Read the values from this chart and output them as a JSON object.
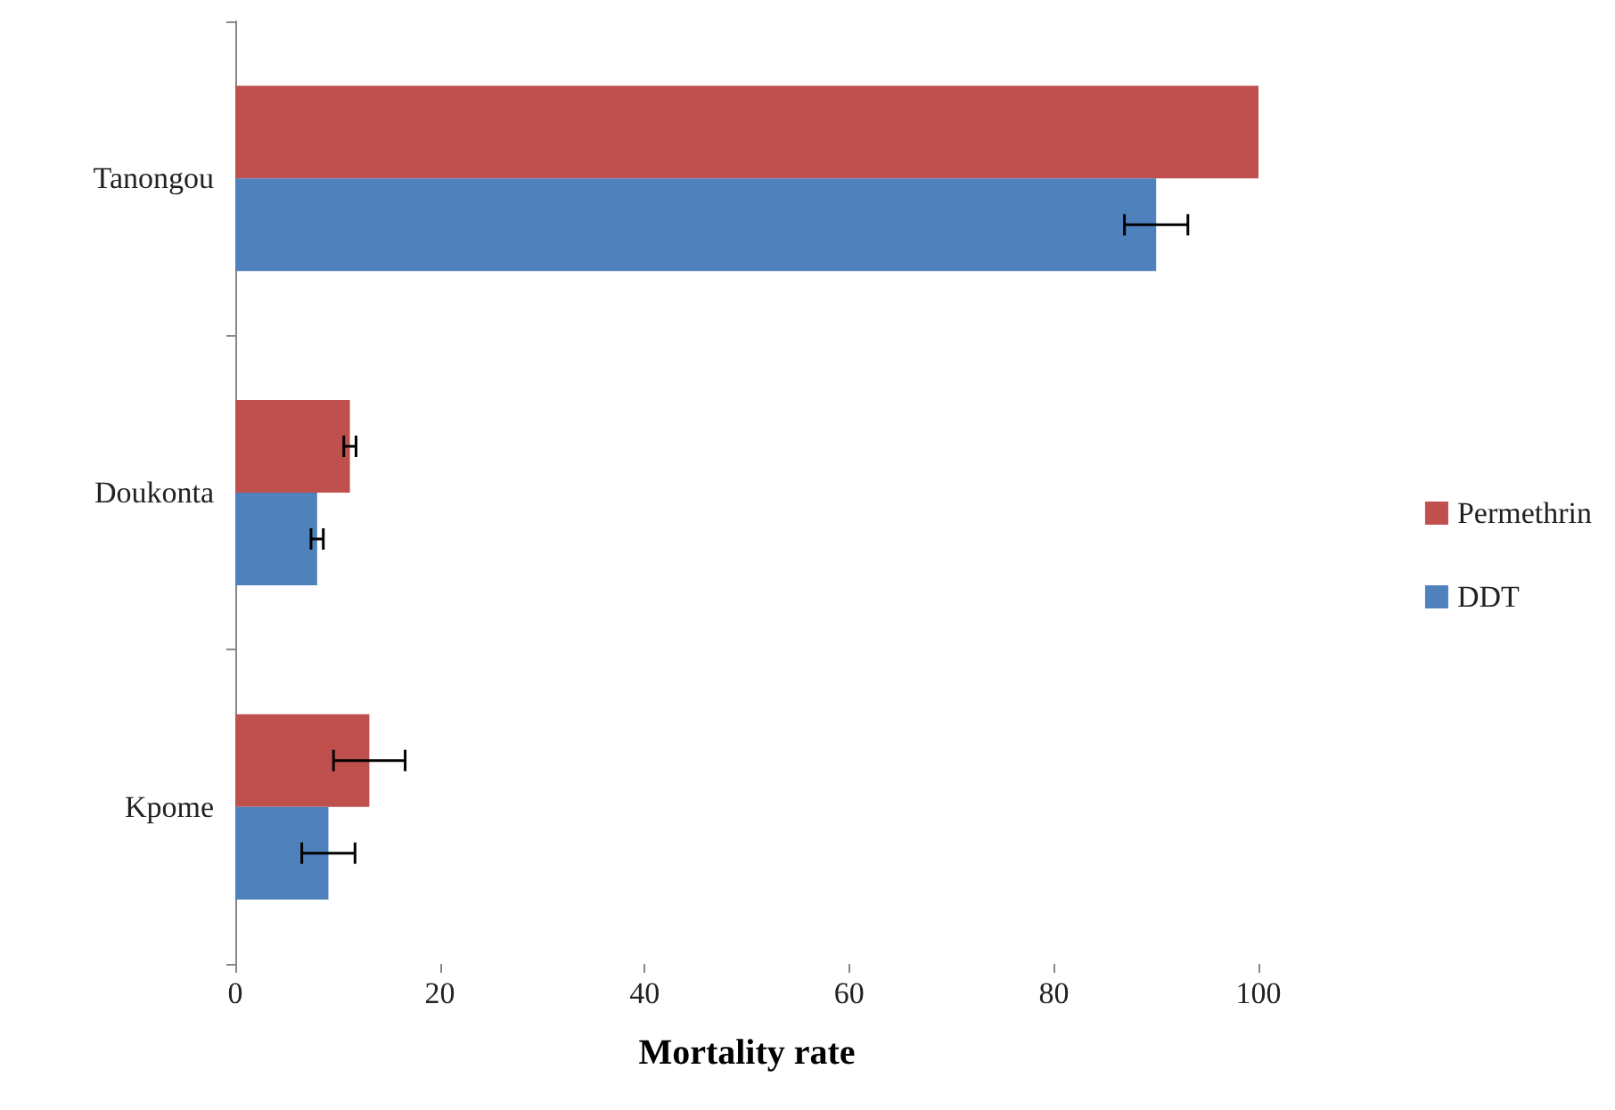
{
  "chart_data": {
    "type": "bar",
    "orientation": "horizontal",
    "xlabel": "Mortality rate",
    "categories": [
      "Tanongou",
      "Doukonta",
      "Kpome"
    ],
    "series": [
      {
        "name": "Permethrin",
        "color": "#c0504d",
        "values": [
          100,
          11.2,
          13.1
        ],
        "errors": [
          null,
          0.6,
          3.5
        ]
      },
      {
        "name": "DDT",
        "color": "#4f81bd",
        "values": [
          90,
          8,
          9.1
        ],
        "errors": [
          3.1,
          0.6,
          2.6
        ]
      }
    ],
    "xlim": [
      0,
      100
    ],
    "xticks": [
      0,
      20,
      40,
      60,
      80,
      100
    ],
    "grid": false,
    "legend": "right"
  }
}
